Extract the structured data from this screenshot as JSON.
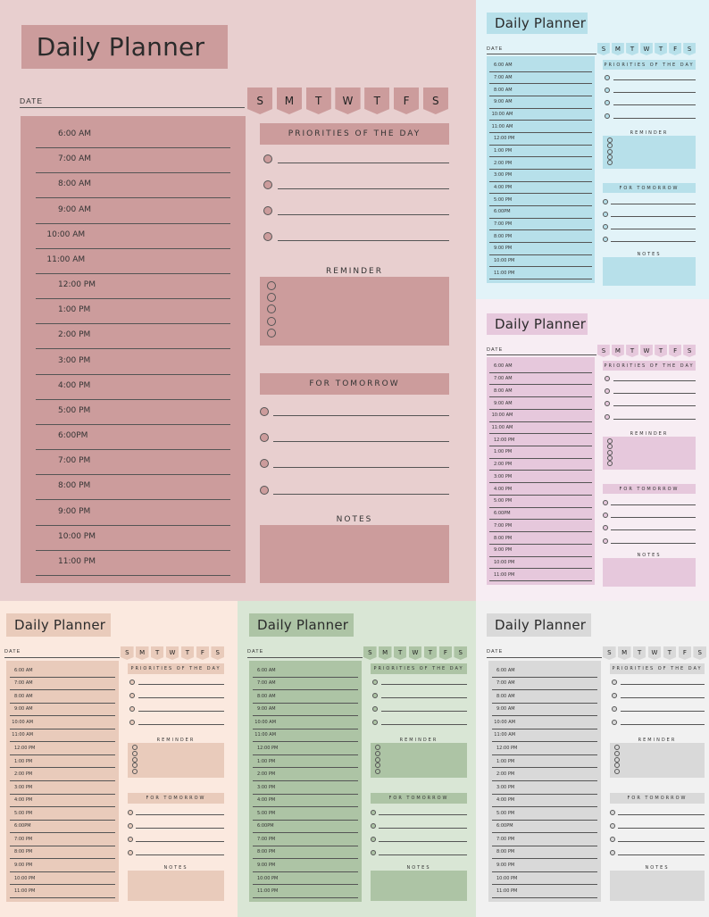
{
  "title": "Daily Planner",
  "date_label": "DATE",
  "days": [
    "S",
    "M",
    "T",
    "W",
    "T",
    "F",
    "S"
  ],
  "times": [
    "6:00 AM",
    "7:00 AM",
    "8:00 AM",
    "9:00 AM",
    "10:00 AM",
    "11:00 AM",
    "12:00 PM",
    "1:00 PM",
    "2:00 PM",
    "3:00 PM",
    "4:00 PM",
    "5:00 PM",
    "6:00PM",
    "7:00 PM",
    "8:00 PM",
    "9:00 PM",
    "10:00 PM",
    "11:00 PM"
  ],
  "priorities_label": "PRIORITIES OF THE DAY",
  "reminder_label": "REMINDER",
  "tomorrow_label": "FOR TOMORROW",
  "notes_label": "NOTES",
  "colors": {
    "pink": {
      "bg": "#e8cfcf",
      "accent": "#cc9c9c"
    },
    "blue": {
      "bg": "#e2f3f8",
      "accent": "#b7e0ea"
    },
    "lavender": {
      "bg": "#f7edf3",
      "accent": "#e6c8dc"
    },
    "peach": {
      "bg": "#fbe9df",
      "accent": "#e9cbbb"
    },
    "sage": {
      "bg": "#d9e6d5",
      "accent": "#adc4a5"
    },
    "gray": {
      "bg": "#f1f1f1",
      "accent": "#d9d9d9"
    }
  }
}
